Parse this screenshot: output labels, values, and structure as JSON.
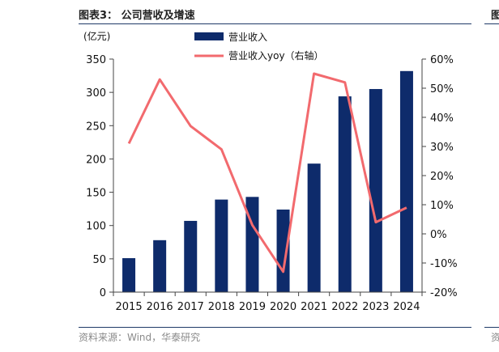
{
  "figure": {
    "title": "图表3：  公司营收及增速",
    "source": "资料来源：Wind，华泰研究",
    "edge_glyph": "图",
    "edge_source": "资"
  },
  "chart_data": {
    "type": "bar",
    "categories": [
      "2015",
      "2016",
      "2017",
      "2018",
      "2019",
      "2020",
      "2021",
      "2022",
      "2023",
      "2024"
    ],
    "series": [
      {
        "name": "营业收入",
        "type": "bar",
        "axis": "left",
        "color": "#0e2b6b",
        "values": [
          51,
          78,
          107,
          139,
          143,
          124,
          193,
          294,
          305,
          332
        ]
      },
      {
        "name": "营业收入yoy（右轴）",
        "type": "line",
        "axis": "right",
        "color": "#f26a6e",
        "values": [
          31,
          53,
          37,
          29,
          3,
          -13,
          55,
          52,
          4,
          9
        ]
      }
    ],
    "left_axis": {
      "unit_label": "(亿元)",
      "ylim": [
        0,
        350
      ],
      "ticks": [
        0,
        50,
        100,
        150,
        200,
        250,
        300,
        350
      ]
    },
    "right_axis": {
      "ylim": [
        -20,
        60
      ],
      "ticks": [
        -20,
        -10,
        0,
        10,
        20,
        30,
        40,
        50,
        60
      ],
      "tick_suffix": "%"
    },
    "legend_position": "top-center",
    "grid": false
  }
}
